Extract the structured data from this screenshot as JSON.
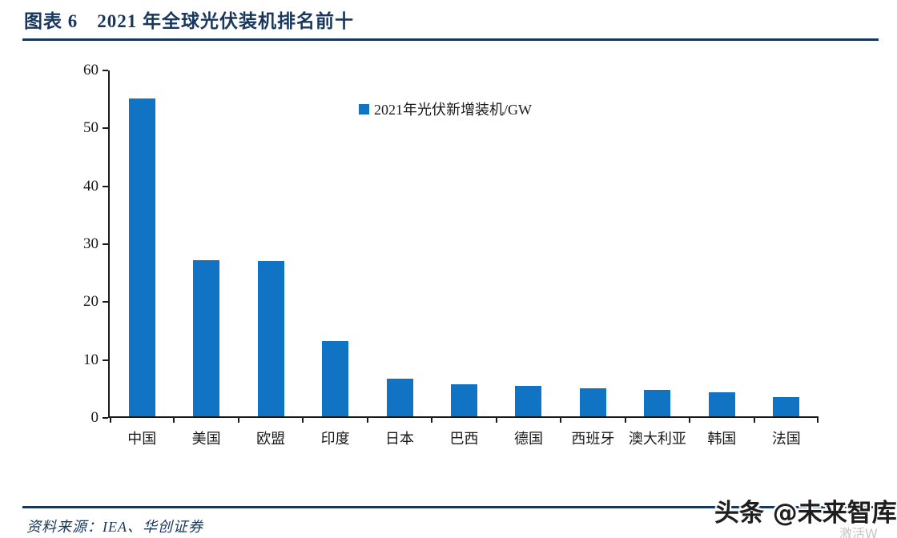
{
  "page": {
    "title": "图表 6　2021 年全球光伏装机排名前十",
    "source_label": "资料来源：IEA、华创证券",
    "watermark": "头条 @未来智库",
    "corner_watermark": "激活W",
    "colors": {
      "accent_navy": "#17375e",
      "bar_blue": "#1173c3",
      "axis_ink": "#1a1a1a",
      "background": "#ffffff"
    }
  },
  "chart_data": {
    "type": "bar",
    "title": "2021 年全球光伏装机排名前十",
    "legend": [
      "2021年光伏新增装机/GW"
    ],
    "legend_position": "top-center",
    "categories": [
      "中国",
      "美国",
      "欧盟",
      "印度",
      "日本",
      "巴西",
      "德国",
      "西班牙",
      "澳大利亚",
      "韩国",
      "法国"
    ],
    "values": [
      54.9,
      26.9,
      26.8,
      13.0,
      6.5,
      5.5,
      5.3,
      4.9,
      4.6,
      4.2,
      3.3
    ],
    "unit": "GW",
    "xlabel": "",
    "ylabel": "",
    "ylim": [
      0,
      60
    ],
    "yticks": [
      0,
      10,
      20,
      30,
      40,
      50,
      60
    ],
    "grid": false,
    "bar_color": "#1173c3"
  }
}
